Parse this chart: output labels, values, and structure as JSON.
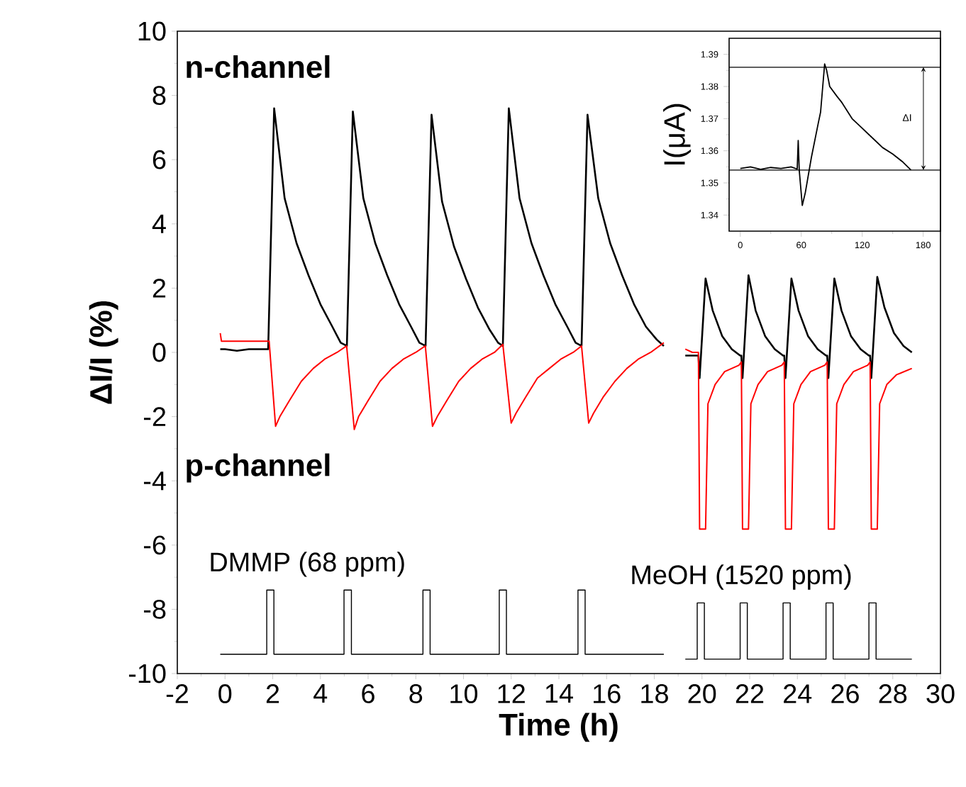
{
  "chart_data": [
    {
      "type": "line",
      "xlabel": "Time (h)",
      "ylabel": "ΔI/I (%)",
      "xlim": [
        -2,
        30
      ],
      "ylim": [
        -10,
        10
      ],
      "xticks": [
        -2,
        0,
        2,
        4,
        6,
        8,
        10,
        12,
        14,
        16,
        18,
        20,
        22,
        24,
        26,
        28,
        30
      ],
      "yticks": [
        -10,
        -8,
        -6,
        -4,
        -2,
        0,
        2,
        4,
        6,
        8,
        10
      ],
      "annotations": [
        "n-channel",
        "p-channel",
        "DMMP (68 ppm)",
        "MeOH (1520 ppm)"
      ],
      "series": [
        {
          "color": "#000000",
          "x": [
            -0.2,
            0,
            0.5,
            1,
            1.5,
            1.81,
            2.06,
            2.5,
            3.0,
            3.5,
            4.0,
            4.5,
            4.85,
            5.11,
            5.36,
            5.8,
            6.3,
            6.8,
            7.3,
            7.8,
            8.15,
            8.41,
            8.66,
            9.1,
            9.6,
            10.1,
            10.6,
            11.1,
            11.45,
            11.65,
            11.9,
            12.35,
            12.85,
            13.35,
            13.85,
            14.35,
            14.7,
            14.95,
            15.2,
            15.65,
            16.15,
            16.65,
            17.15,
            17.65,
            18.1,
            18.4,
            18.9,
            19.3,
            19.6,
            19.85,
            19.9,
            20.15,
            20.45,
            20.85,
            21.25,
            21.6,
            21.65,
            21.7,
            21.95,
            22.25,
            22.65,
            23.05,
            23.4,
            23.45,
            23.5,
            23.75,
            24.05,
            24.45,
            24.85,
            25.2,
            25.25,
            25.3,
            25.55,
            25.85,
            26.25,
            26.65,
            27.0,
            27.05,
            27.1,
            27.35,
            27.65,
            28.05,
            28.45,
            28.8
          ],
          "values": [
            0.1,
            0.1,
            0.05,
            0.1,
            0.1,
            0.1,
            7.6,
            4.8,
            3.4,
            2.4,
            1.5,
            0.8,
            0.3,
            0.2,
            7.5,
            4.8,
            3.4,
            2.4,
            1.5,
            0.8,
            0.3,
            0.2,
            7.4,
            4.7,
            3.3,
            2.3,
            1.4,
            0.7,
            0.3,
            0.2,
            7.6,
            4.8,
            3.4,
            2.4,
            1.5,
            0.8,
            0.3,
            0.2,
            7.4,
            4.8,
            3.4,
            2.4,
            1.5,
            0.8,
            0.4,
            0.2,
            null,
            -0.1,
            -0.1,
            -0.1,
            -0.8,
            2.3,
            1.3,
            0.5,
            0.1,
            -0.1,
            -0.1,
            -0.8,
            2.4,
            1.3,
            0.5,
            0.1,
            -0.1,
            -0.1,
            -0.8,
            2.3,
            1.3,
            0.5,
            0.1,
            -0.1,
            -0.1,
            -0.8,
            2.3,
            1.3,
            0.5,
            0.1,
            -0.1,
            -0.1,
            -0.8,
            2.35,
            1.4,
            0.6,
            0.2,
            0.0
          ]
        },
        {
          "color": "#ff0000",
          "x": [
            -0.2,
            -0.15,
            0.5,
            1.0,
            1.5,
            1.85,
            2.12,
            2.3,
            2.7,
            3.2,
            3.7,
            4.2,
            4.7,
            5.1,
            5.42,
            5.6,
            6.0,
            6.5,
            7.0,
            7.5,
            8.0,
            8.4,
            8.7,
            8.9,
            9.3,
            9.8,
            10.3,
            10.8,
            11.3,
            11.65,
            12.0,
            12.2,
            12.6,
            13.1,
            13.6,
            14.1,
            14.6,
            14.95,
            15.25,
            15.45,
            15.85,
            16.35,
            16.85,
            17.35,
            17.85,
            18.4,
            18.9,
            19.3,
            19.6,
            19.85,
            19.9,
            20.15,
            20.25,
            20.55,
            20.95,
            21.55,
            21.65,
            21.7,
            21.95,
            22.05,
            22.35,
            22.75,
            23.35,
            23.45,
            23.5,
            23.75,
            23.85,
            24.15,
            24.55,
            25.15,
            25.25,
            25.3,
            25.55,
            25.65,
            25.95,
            26.35,
            26.95,
            27.05,
            27.1,
            27.35,
            27.45,
            27.75,
            28.15,
            28.8
          ],
          "values": [
            0.6,
            0.35,
            0.35,
            0.35,
            0.35,
            0.35,
            -2.3,
            -2.0,
            -1.5,
            -0.9,
            -0.5,
            -0.2,
            0.0,
            0.2,
            -2.4,
            -2.0,
            -1.5,
            -0.9,
            -0.5,
            -0.2,
            0.0,
            0.2,
            -2.3,
            -2.0,
            -1.5,
            -0.9,
            -0.5,
            -0.2,
            0.0,
            0.25,
            -2.2,
            -1.9,
            -1.4,
            -0.8,
            -0.5,
            -0.2,
            0.0,
            0.2,
            -2.2,
            -1.9,
            -1.4,
            -0.9,
            -0.5,
            -0.2,
            0.0,
            0.3,
            null,
            0.1,
            0.0,
            0.0,
            -5.5,
            -5.5,
            -1.6,
            -1.0,
            -0.6,
            -0.4,
            -0.3,
            -5.5,
            -5.5,
            -1.6,
            -1.0,
            -0.6,
            -0.4,
            -0.3,
            -5.5,
            -5.5,
            -1.6,
            -1.0,
            -0.6,
            -0.4,
            -0.3,
            -5.5,
            -5.5,
            -1.6,
            -1.0,
            -0.6,
            -0.4,
            -0.3,
            -5.5,
            -5.5,
            -1.6,
            -1.0,
            -0.7,
            -0.5
          ]
        },
        {
          "color": "#000000",
          "x": [
            -0.2,
            1.75,
            1.75,
            2.05,
            2.05,
            4.99,
            4.99,
            5.3,
            5.3,
            8.3,
            8.3,
            8.6,
            8.6,
            11.5,
            11.5,
            11.8,
            11.8,
            14.8,
            14.8,
            15.1,
            15.1,
            18.4,
            18.9,
            19.3,
            19.8,
            19.8,
            20.1,
            20.1,
            21.6,
            21.6,
            21.9,
            21.9,
            23.4,
            23.4,
            23.7,
            23.7,
            25.2,
            25.2,
            25.5,
            25.5,
            27.0,
            27.0,
            27.3,
            27.3,
            28.8
          ],
          "values": [
            -9.4,
            -9.4,
            -7.4,
            -7.4,
            -9.4,
            -9.4,
            -7.4,
            -7.4,
            -9.4,
            -9.4,
            -7.4,
            -7.4,
            -9.4,
            -9.4,
            -7.4,
            -7.4,
            -9.4,
            -9.4,
            -7.4,
            -7.4,
            -9.4,
            -9.4,
            null,
            -9.55,
            -9.55,
            -7.8,
            -7.8,
            -9.55,
            -9.55,
            -7.8,
            -7.8,
            -9.55,
            -9.55,
            -7.8,
            -7.8,
            -9.55,
            -9.55,
            -7.8,
            -7.8,
            -9.55,
            -9.55,
            -7.8,
            -7.8,
            -9.55,
            -9.55
          ]
        }
      ]
    },
    {
      "type": "line",
      "ylabel": "I(μA)",
      "xlim": [
        -11,
        197
      ],
      "ylim": [
        1.335,
        1.395
      ],
      "xticks": [
        0,
        60,
        120,
        180
      ],
      "yticks": [
        1.34,
        1.35,
        1.36,
        1.37,
        1.38,
        1.39
      ],
      "annotations": [
        "ΔI"
      ],
      "ref_lines": [
        {
          "axis": "y",
          "value": 1.386
        },
        {
          "axis": "y",
          "value": 1.354
        }
      ],
      "series": [
        {
          "color": "#000000",
          "x": [
            0,
            10,
            20,
            30,
            40,
            50,
            56,
            57,
            58,
            61,
            64,
            70,
            77,
            79,
            83,
            85,
            88,
            95,
            100,
            110,
            120,
            130,
            140,
            150,
            160,
            168
          ],
          "values": [
            1.3545,
            1.355,
            1.3542,
            1.3548,
            1.3545,
            1.355,
            1.3543,
            1.3632,
            1.354,
            1.343,
            1.347,
            1.358,
            1.369,
            1.372,
            1.387,
            1.385,
            1.38,
            1.377,
            1.375,
            1.37,
            1.367,
            1.364,
            1.361,
            1.359,
            1.3565,
            1.354
          ]
        }
      ]
    }
  ]
}
